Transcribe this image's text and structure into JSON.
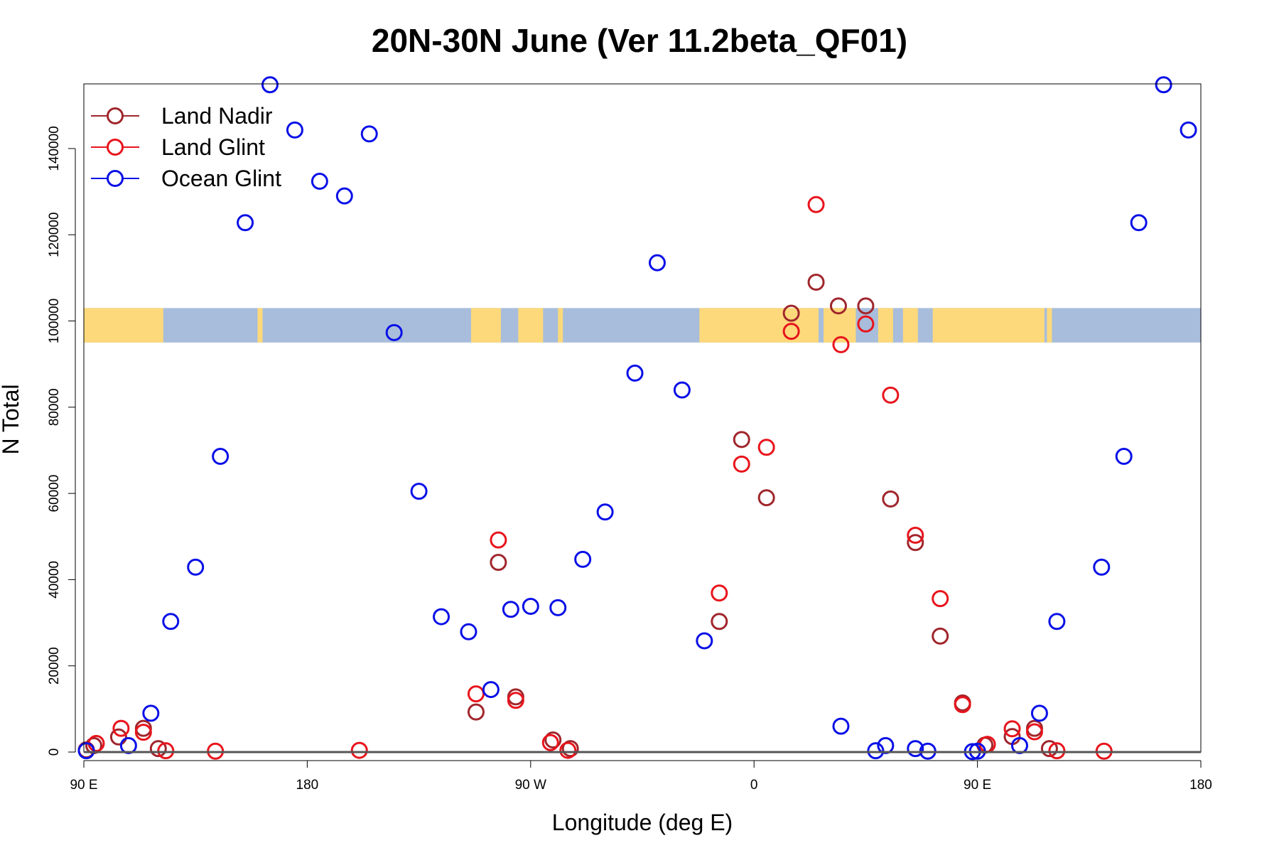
{
  "chart_data": {
    "type": "scatter",
    "title": "20N-30N June (Ver 11.2beta_QF01)",
    "xlabel": "Longitude (deg E)",
    "ylabel": "N Total",
    "xlim": [
      90,
      540
    ],
    "ylim": [
      0,
      155000
    ],
    "x_ticks": [
      {
        "value": 90,
        "label": "90 E"
      },
      {
        "value": 180,
        "label": "180"
      },
      {
        "value": 270,
        "label": "90 W"
      },
      {
        "value": 360,
        "label": "0"
      },
      {
        "value": 450,
        "label": "90 E"
      },
      {
        "value": 540,
        "label": "180"
      }
    ],
    "y_ticks": [
      {
        "value": 0,
        "label": "0"
      },
      {
        "value": 20000,
        "label": "20000"
      },
      {
        "value": 40000,
        "label": "40000"
      },
      {
        "value": 60000,
        "label": "60000"
      },
      {
        "value": 80000,
        "label": "80000"
      },
      {
        "value": 100000,
        "label": "100000"
      },
      {
        "value": 120000,
        "label": "120000"
      },
      {
        "value": 140000,
        "label": "140000"
      }
    ],
    "map_strip": {
      "lon_start": 90,
      "lon_end": 540,
      "y_bottom": 95000,
      "y_top": 103000,
      "ocean_color": "#a8bddb",
      "land_color": "#fdd97b"
    },
    "legend_position": "top-left",
    "series": [
      {
        "name": "Land Nadir",
        "color": "#a0262c",
        "points": [
          {
            "x": 91,
            "y": 500
          },
          {
            "x": 94,
            "y": 1500
          },
          {
            "x": 104,
            "y": 3500
          },
          {
            "x": 114,
            "y": 5500
          },
          {
            "x": 120,
            "y": 800
          },
          {
            "x": 248,
            "y": 9300
          },
          {
            "x": 257,
            "y": 44000
          },
          {
            "x": 264,
            "y": 12800
          },
          {
            "x": 279,
            "y": 2800
          },
          {
            "x": 286,
            "y": 800
          },
          {
            "x": 346,
            "y": 30300
          },
          {
            "x": 355,
            "y": 72500
          },
          {
            "x": 365,
            "y": 59000
          },
          {
            "x": 375,
            "y": 101800
          },
          {
            "x": 385,
            "y": 109000
          },
          {
            "x": 394,
            "y": 103500
          },
          {
            "x": 405,
            "y": 103500
          },
          {
            "x": 415,
            "y": 58700
          },
          {
            "x": 425,
            "y": 48600
          },
          {
            "x": 435,
            "y": 26900
          },
          {
            "x": 444,
            "y": 11400
          },
          {
            "x": 453,
            "y": 1600
          },
          {
            "x": 464,
            "y": 3600
          },
          {
            "x": 473,
            "y": 5500
          },
          {
            "x": 479,
            "y": 800
          }
        ]
      },
      {
        "name": "Land Glint",
        "color": "#e8141c",
        "points": [
          {
            "x": 95,
            "y": 2000
          },
          {
            "x": 105,
            "y": 5500
          },
          {
            "x": 114,
            "y": 4600
          },
          {
            "x": 123,
            "y": 300
          },
          {
            "x": 143,
            "y": 200
          },
          {
            "x": 201,
            "y": 400
          },
          {
            "x": 248,
            "y": 13500
          },
          {
            "x": 257,
            "y": 49200
          },
          {
            "x": 264,
            "y": 12000
          },
          {
            "x": 278,
            "y": 2200
          },
          {
            "x": 285,
            "y": 400
          },
          {
            "x": 346,
            "y": 36900
          },
          {
            "x": 355,
            "y": 66800
          },
          {
            "x": 365,
            "y": 70700
          },
          {
            "x": 375,
            "y": 97600
          },
          {
            "x": 385,
            "y": 127000
          },
          {
            "x": 395,
            "y": 94500
          },
          {
            "x": 405,
            "y": 99300
          },
          {
            "x": 415,
            "y": 82800
          },
          {
            "x": 425,
            "y": 50300
          },
          {
            "x": 435,
            "y": 35600
          },
          {
            "x": 444,
            "y": 11000
          },
          {
            "x": 454,
            "y": 1800
          },
          {
            "x": 464,
            "y": 5400
          },
          {
            "x": 473,
            "y": 4700
          },
          {
            "x": 482,
            "y": 300
          },
          {
            "x": 501,
            "y": 200
          }
        ]
      },
      {
        "name": "Ocean Glint",
        "color": "#0a10e6",
        "points": [
          {
            "x": 91,
            "y": 300
          },
          {
            "x": 108,
            "y": 1500
          },
          {
            "x": 117,
            "y": 9000
          },
          {
            "x": 125,
            "y": 30300
          },
          {
            "x": 135,
            "y": 42900
          },
          {
            "x": 145,
            "y": 68600
          },
          {
            "x": 155,
            "y": 122800
          },
          {
            "x": 165,
            "y": 154800
          },
          {
            "x": 175,
            "y": 144300
          },
          {
            "x": 185,
            "y": 132400
          },
          {
            "x": 195,
            "y": 129000
          },
          {
            "x": 205,
            "y": 143400
          },
          {
            "x": 215,
            "y": 97300
          },
          {
            "x": 225,
            "y": 60500
          },
          {
            "x": 234,
            "y": 31400
          },
          {
            "x": 245,
            "y": 27900
          },
          {
            "x": 254,
            "y": 14500
          },
          {
            "x": 262,
            "y": 33100
          },
          {
            "x": 270,
            "y": 33800
          },
          {
            "x": 281,
            "y": 33500
          },
          {
            "x": 291,
            "y": 44700
          },
          {
            "x": 300,
            "y": 55700
          },
          {
            "x": 312,
            "y": 87900
          },
          {
            "x": 321,
            "y": 113500
          },
          {
            "x": 331,
            "y": 84000
          },
          {
            "x": 340,
            "y": 25800
          },
          {
            "x": 395,
            "y": 6000
          },
          {
            "x": 409,
            "y": 300
          },
          {
            "x": 413,
            "y": 1500
          },
          {
            "x": 425,
            "y": 800
          },
          {
            "x": 430,
            "y": 200
          },
          {
            "x": 448,
            "y": 100
          },
          {
            "x": 450,
            "y": 200
          },
          {
            "x": 467,
            "y": 1500
          },
          {
            "x": 475,
            "y": 9000
          },
          {
            "x": 482,
            "y": 30300
          },
          {
            "x": 500,
            "y": 42900
          },
          {
            "x": 509,
            "y": 68600
          },
          {
            "x": 515,
            "y": 122800
          },
          {
            "x": 525,
            "y": 154800
          },
          {
            "x": 535,
            "y": 144300
          }
        ]
      }
    ]
  }
}
